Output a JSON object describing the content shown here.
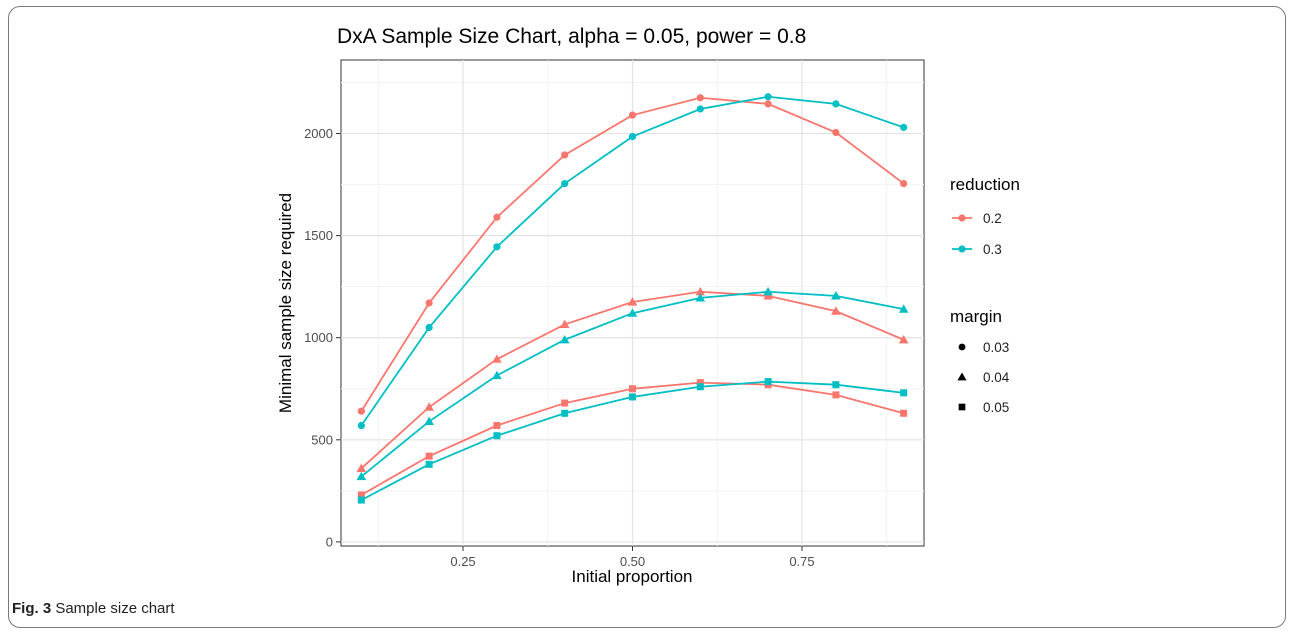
{
  "chart_data": {
    "type": "line",
    "title": "DxA Sample Size Chart, alpha = 0.05, power = 0.8",
    "xlabel": "Initial proportion",
    "ylabel": "Minimal sample size required",
    "xlim": [
      0.07,
      0.93
    ],
    "ylim": [
      -20,
      2360
    ],
    "x_ticks": [
      0.25,
      0.5,
      0.75
    ],
    "x_tick_labels": [
      "0.25",
      "0.50",
      "0.75"
    ],
    "y_ticks": [
      0,
      500,
      1000,
      1500,
      2000
    ],
    "y_tick_labels": [
      "0",
      "500",
      "1000",
      "1500",
      "2000"
    ],
    "grid": true,
    "legend_placement": "right",
    "x": [
      0.1,
      0.2,
      0.3,
      0.4,
      0.5,
      0.6,
      0.7,
      0.8,
      0.9
    ],
    "series": [
      {
        "reduction": "0.2",
        "margin": "0.03",
        "values": [
          640,
          1170,
          1590,
          1895,
          2090,
          2175,
          2145,
          2005,
          1755
        ]
      },
      {
        "reduction": "0.3",
        "margin": "0.03",
        "values": [
          570,
          1050,
          1445,
          1755,
          1985,
          2120,
          2180,
          2145,
          2030
        ]
      },
      {
        "reduction": "0.2",
        "margin": "0.04",
        "values": [
          360,
          660,
          895,
          1065,
          1175,
          1225,
          1205,
          1130,
          990
        ]
      },
      {
        "reduction": "0.3",
        "margin": "0.04",
        "values": [
          320,
          590,
          815,
          990,
          1120,
          1195,
          1225,
          1205,
          1140
        ]
      },
      {
        "reduction": "0.2",
        "margin": "0.05",
        "values": [
          230,
          420,
          570,
          680,
          750,
          780,
          770,
          720,
          630
        ]
      },
      {
        "reduction": "0.3",
        "margin": "0.05",
        "values": [
          205,
          380,
          520,
          630,
          710,
          760,
          785,
          770,
          730
        ]
      }
    ],
    "legend_reduction": {
      "title": "reduction",
      "items": [
        {
          "label": "0.2",
          "color": "#F8766D"
        },
        {
          "label": "0.3",
          "color": "#00BFC4"
        }
      ]
    },
    "legend_margin": {
      "title": "margin",
      "items": [
        {
          "label": "0.03",
          "shape": "circle"
        },
        {
          "label": "0.04",
          "shape": "triangle"
        },
        {
          "label": "0.05",
          "shape": "square"
        }
      ]
    }
  },
  "caption": {
    "label": "Fig. 3",
    "text": " Sample size chart"
  }
}
